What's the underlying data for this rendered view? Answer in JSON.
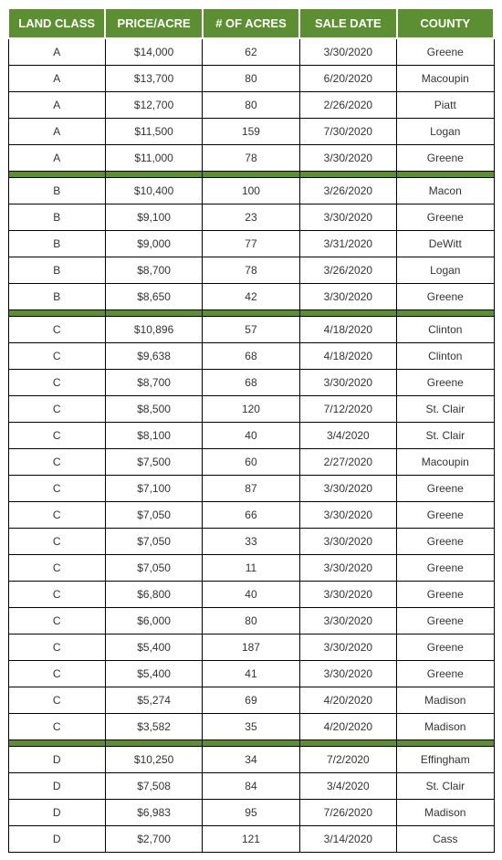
{
  "table": {
    "header_bg": "#5b8f31",
    "separator_bg": "#5b8f31",
    "columns": [
      "LAND CLASS",
      "PRICE/ACRE",
      "# OF ACRES",
      "SALE DATE",
      "COUNTY"
    ],
    "groups": [
      {
        "rows": [
          [
            "A",
            "$14,000",
            "62",
            "3/30/2020",
            "Greene"
          ],
          [
            "A",
            "$13,700",
            "80",
            "6/20/2020",
            "Macoupin"
          ],
          [
            "A",
            "$12,700",
            "80",
            "2/26/2020",
            "Piatt"
          ],
          [
            "A",
            "$11,500",
            "159",
            "7/30/2020",
            "Logan"
          ],
          [
            "A",
            "$11,000",
            "78",
            "3/30/2020",
            "Greene"
          ]
        ]
      },
      {
        "rows": [
          [
            "B",
            "$10,400",
            "100",
            "3/26/2020",
            "Macon"
          ],
          [
            "B",
            "$9,100",
            "23",
            "3/30/2020",
            "Greene"
          ],
          [
            "B",
            "$9,000",
            "77",
            "3/31/2020",
            "DeWitt"
          ],
          [
            "B",
            "$8,700",
            "78",
            "3/26/2020",
            "Logan"
          ],
          [
            "B",
            "$8,650",
            "42",
            "3/30/2020",
            "Greene"
          ]
        ]
      },
      {
        "rows": [
          [
            "C",
            "$10,896",
            "57",
            "4/18/2020",
            "Clinton"
          ],
          [
            "C",
            "$9,638",
            "68",
            "4/18/2020",
            "Clinton"
          ],
          [
            "C",
            "$8,700",
            "68",
            "3/30/2020",
            "Greene"
          ],
          [
            "C",
            "$8,500",
            "120",
            "7/12/2020",
            "St. Clair"
          ],
          [
            "C",
            "$8,100",
            "40",
            "3/4/2020",
            "St. Clair"
          ],
          [
            "C",
            "$7,500",
            "60",
            "2/27/2020",
            "Macoupin"
          ],
          [
            "C",
            "$7,100",
            "87",
            "3/30/2020",
            "Greene"
          ],
          [
            "C",
            "$7,050",
            "66",
            "3/30/2020",
            "Greene"
          ],
          [
            "C",
            "$7,050",
            "33",
            "3/30/2020",
            "Greene"
          ],
          [
            "C",
            "$7,050",
            "11",
            "3/30/2020",
            "Greene"
          ],
          [
            "C",
            "$6,800",
            "40",
            "3/30/2020",
            "Greene"
          ],
          [
            "C",
            "$6,000",
            "80",
            "3/30/2020",
            "Greene"
          ],
          [
            "C",
            "$5,400",
            "187",
            "3/30/2020",
            "Greene"
          ],
          [
            "C",
            "$5,400",
            "41",
            "3/30/2020",
            "Greene"
          ],
          [
            "C",
            "$5,274",
            "69",
            "4/20/2020",
            "Madison"
          ],
          [
            "C",
            "$3,582",
            "35",
            "4/20/2020",
            "Madison"
          ]
        ]
      },
      {
        "rows": [
          [
            "D",
            "$10,250",
            "34",
            "7/2/2020",
            "Effingham"
          ],
          [
            "D",
            "$7,508",
            "84",
            "3/4/2020",
            "St. Clair"
          ],
          [
            "D",
            "$6,983",
            "95",
            "7/26/2020",
            "Madison"
          ],
          [
            "D",
            "$2,700",
            "121",
            "3/14/2020",
            "Cass"
          ]
        ]
      }
    ]
  }
}
